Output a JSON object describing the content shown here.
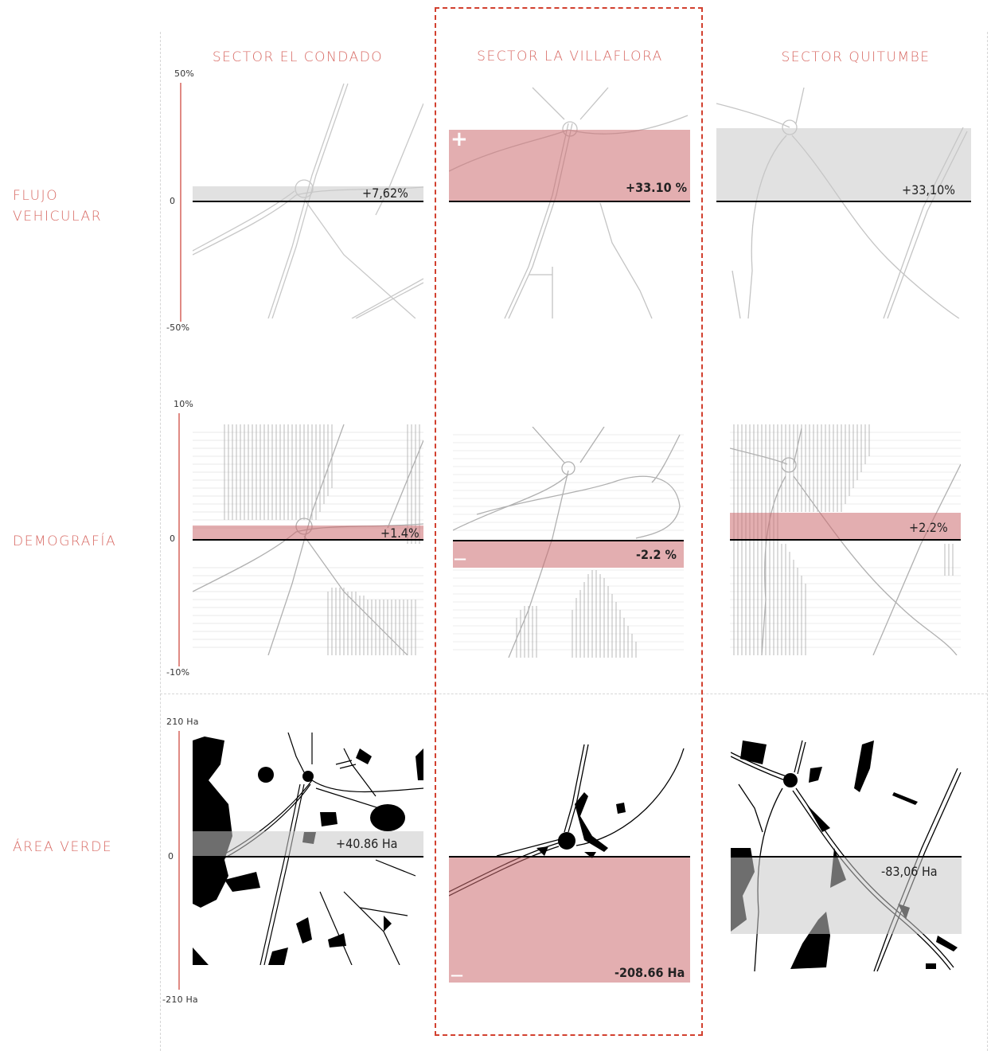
{
  "columns": [
    {
      "title": "SECTOR EL CONDADO"
    },
    {
      "title": "SECTOR LA VILLAFLORA"
    },
    {
      "title": "SECTOR QUITUMBE"
    }
  ],
  "rows": [
    {
      "label_line1": "FLUJO",
      "label_line2": "VEHICULAR",
      "axis": {
        "top": "50%",
        "zero": "0",
        "bottom": "-50%"
      }
    },
    {
      "label_line1": "DEMOGRAFÍA",
      "label_line2": "",
      "axis": {
        "top": "10%",
        "zero": "0",
        "bottom": "-10%"
      }
    },
    {
      "label_line1": "ÁREA VERDE",
      "label_line2": "",
      "axis": {
        "top": "210 Ha",
        "zero": "0",
        "bottom": "-210 Ha"
      }
    }
  ],
  "values": {
    "flujo": [
      "+7,62%",
      "+33.10 %",
      "+33,10%"
    ],
    "demografia": [
      "+1.4%",
      "-2.2 %",
      "+2.2%"
    ],
    "area_verde": [
      "+40.86 Ha",
      "-208.66 Ha",
      "-83,06 Ha"
    ]
  },
  "signs": {
    "plus": "+",
    "minus": "—"
  },
  "colors": {
    "accent": "#d86a64",
    "highlight_frame": "#d2402f",
    "positive_band": "#d99ea1",
    "neutral_band": "#d4d4d4",
    "zero_line": "#000000"
  }
}
